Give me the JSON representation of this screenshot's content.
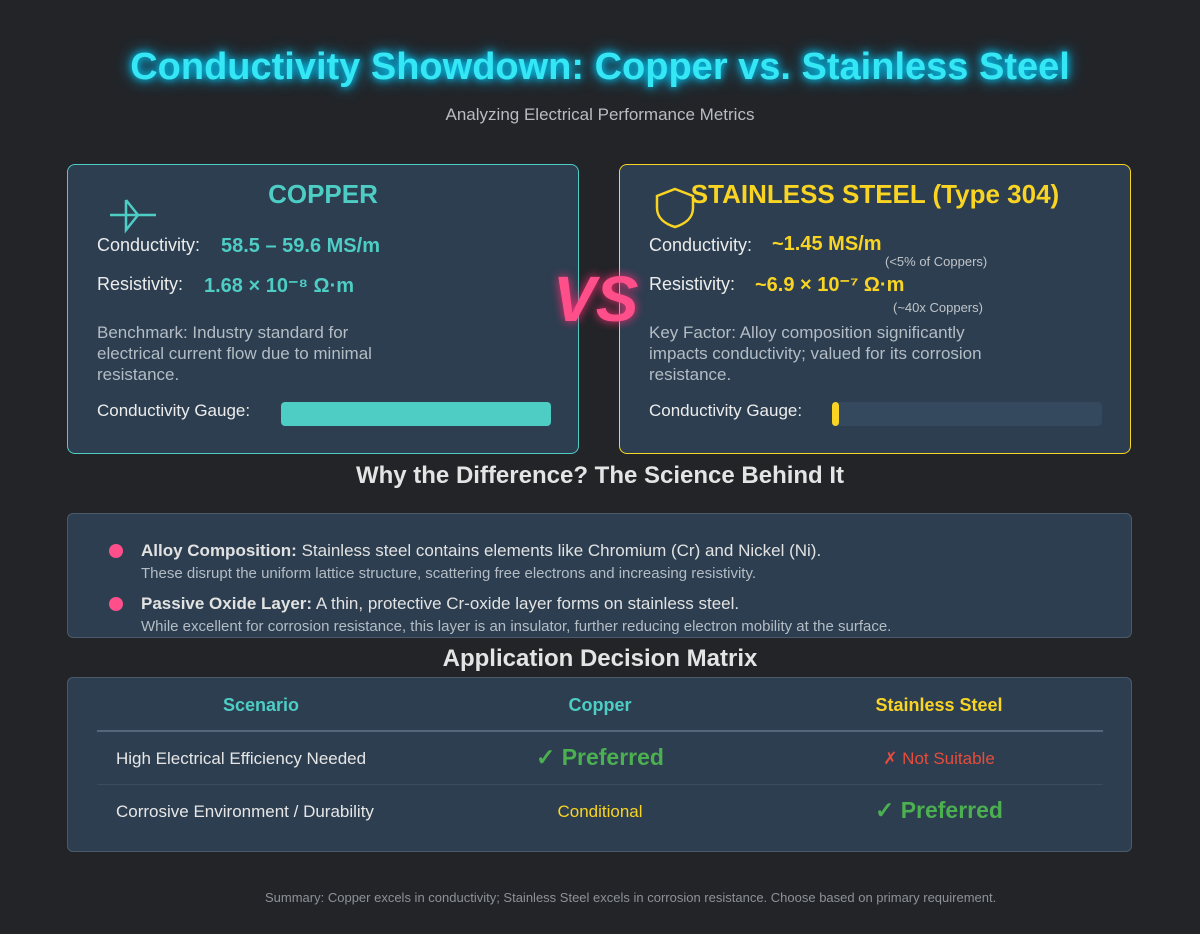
{
  "header": {
    "title": "Conductivity Showdown: Copper vs. Stainless Steel",
    "subtitle": "Analyzing Electrical Performance Metrics"
  },
  "cards": [
    {
      "name": "COPPER",
      "conductivity_label": "Conductivity:",
      "conductivity": "58.5 – 59.6 MS/m",
      "resistivity_label": "Resistivity:",
      "resistivity": "1.68 × 10⁻⁸ Ω·m",
      "description": "Benchmark: Industry standard for electrical current flow due to minimal resistance.",
      "gauge_label": "Conductivity Gauge:",
      "gauge": 100
    },
    {
      "name": "STAINLESS STEEL (Type 304)",
      "conductivity_label": "Conductivity:",
      "conductivity": "~1.45 MS/m",
      "conductivity_note": "(<5% of Coppers)",
      "resistivity_label": "Resistivity:",
      "resistivity": "~6.9 × 10⁻⁷ Ω·m",
      "resistivity_note": "(~40x Coppers)",
      "description": "Key Factor: Alloy composition significantly impacts conductivity; valued for its corrosion resistance.",
      "gauge_label": "Conductivity Gauge:",
      "gauge": 2.5
    }
  ],
  "vs": "VS",
  "science": {
    "title": "Why the Difference? The Science Behind It",
    "items": [
      {
        "term": "Alloy Composition:",
        "text": "Stainless steel contains elements like Chromium (Cr) and Nickel (Ni).",
        "detail": "These disrupt the uniform lattice structure, scattering free electrons and increasing resistivity."
      },
      {
        "term": "Passive Oxide Layer:",
        "text": "A thin, protective Cr-oxide layer forms on stainless steel.",
        "detail": "While excellent for corrosion resistance, this layer is an insulator, further reducing electron mobility at the surface."
      }
    ]
  },
  "matrix": {
    "title": "Application Decision Matrix",
    "columns": [
      "Scenario",
      "Copper",
      "Stainless Steel"
    ],
    "rows": [
      [
        "High Electrical Efficiency Needed",
        "✓ Preferred",
        "✗ Not Suitable"
      ],
      [
        "Corrosive Environment / Durability",
        "Conditional",
        "✓ Preferred"
      ]
    ]
  },
  "summary": "Summary: Copper excels in conductivity; Stainless Steel excels in corrosion resistance. Choose based on primary requirement."
}
